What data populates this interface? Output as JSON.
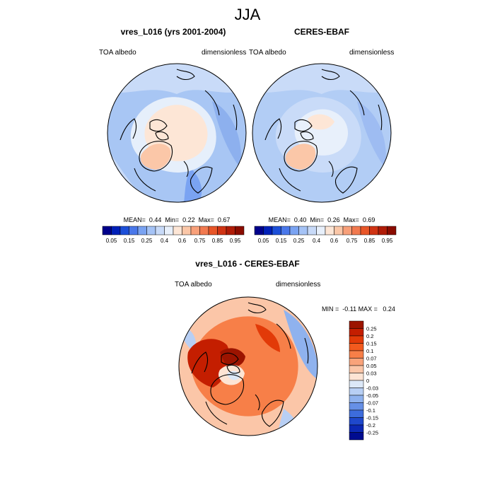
{
  "figure": {
    "season_title": "JJA"
  },
  "panels": [
    {
      "title": "vres_L016 (yrs 2001-2004)",
      "left_label": "TOA albedo",
      "right_label": "dimensionless",
      "stats": "MEAN=  0.44  Min=  0.22  Max=  0.67",
      "colorbar": {
        "ticks": [
          "0.05",
          "0.15",
          "0.25",
          "0.4",
          "0.6",
          "0.75",
          "0.85",
          "0.95"
        ],
        "colors": [
          "#00008b",
          "#0020b8",
          "#1c4fd8",
          "#4a78ea",
          "#7aa3f2",
          "#a5c3f6",
          "#c8daf8",
          "#e8f0fb",
          "#fde6d6",
          "#fbc7a8",
          "#f8a07a",
          "#f27a50",
          "#e85628",
          "#d03414",
          "#b01c08",
          "#8a0c00"
        ]
      },
      "chart_data": {
        "type": "heatmap",
        "projection": "north polar stereographic",
        "variable": "TOA albedo",
        "units": "dimensionless",
        "mean": 0.44,
        "min": 0.22,
        "max": 0.67,
        "colorbar_ticks": [
          0.05,
          0.15,
          0.25,
          0.4,
          0.6,
          0.75,
          0.85,
          0.95
        ]
      }
    },
    {
      "title": "CERES-EBAF",
      "left_label": "TOA albedo",
      "right_label": "dimensionless",
      "stats": "MEAN=  0.40  Min=  0.26  Max=  0.69",
      "colorbar": {
        "ticks": [
          "0.05",
          "0.15",
          "0.25",
          "0.4",
          "0.6",
          "0.75",
          "0.85",
          "0.95"
        ],
        "colors": [
          "#00008b",
          "#0020b8",
          "#1c4fd8",
          "#4a78ea",
          "#7aa3f2",
          "#a5c3f6",
          "#c8daf8",
          "#e8f0fb",
          "#fde6d6",
          "#fbc7a8",
          "#f8a07a",
          "#f27a50",
          "#e85628",
          "#d03414",
          "#b01c08",
          "#8a0c00"
        ]
      },
      "chart_data": {
        "type": "heatmap",
        "projection": "north polar stereographic",
        "variable": "TOA albedo",
        "units": "dimensionless",
        "mean": 0.4,
        "min": 0.26,
        "max": 0.69,
        "colorbar_ticks": [
          0.05,
          0.15,
          0.25,
          0.4,
          0.6,
          0.75,
          0.85,
          0.95
        ]
      }
    },
    {
      "title": "vres_L016 - CERES-EBAF",
      "left_label": "TOA albedo",
      "right_label": "dimensionless",
      "stats": "MIN =  -0.11 MAX =   0.24",
      "colorbar": {
        "ticks": [
          "0.25",
          "0.2",
          "0.15",
          "0.1",
          "0.07",
          "0.05",
          "0.03",
          "0",
          "-0.03",
          "-0.05",
          "-0.07",
          "-0.1",
          "-0.15",
          "-0.2",
          "-0.25"
        ],
        "colors": [
          "#9c1400",
          "#c41e00",
          "#e23a08",
          "#f25a1e",
          "#f77f48",
          "#f9a37a",
          "#fbc6a8",
          "#fde4d4",
          "#dce8f8",
          "#b8cff4",
          "#8fb2ee",
          "#6690e6",
          "#3d6cdc",
          "#1f48cc",
          "#0c28b4",
          "#000c90"
        ]
      },
      "chart_data": {
        "type": "heatmap",
        "projection": "north polar stereographic",
        "variable": "TOA albedo difference",
        "units": "dimensionless",
        "min": -0.11,
        "max": 0.24,
        "colorbar_ticks": [
          0.25,
          0.2,
          0.15,
          0.1,
          0.07,
          0.05,
          0.03,
          0,
          -0.03,
          -0.05,
          -0.07,
          -0.1,
          -0.15,
          -0.2,
          -0.25
        ]
      }
    }
  ]
}
